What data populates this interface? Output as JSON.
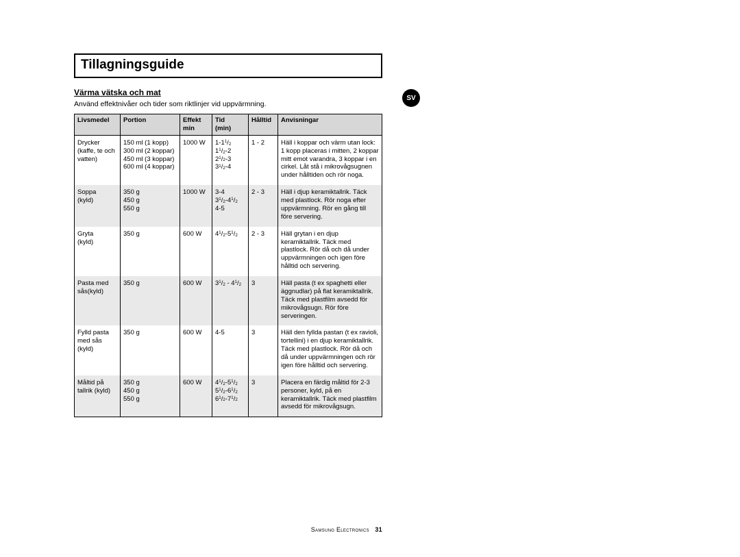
{
  "page": {
    "title": "Tillagningsguide",
    "subhead": "Värma vätska och mat",
    "intro": "Använd effektnivåer och tider som riktlinjer vid uppvärmning.",
    "lang_badge": "SV",
    "footer_brand": "Samsung Electronics",
    "footer_page": "31"
  },
  "table": {
    "columns": {
      "livsmedel": "Livsmedel",
      "portion": "Portion",
      "effekt": "Effekt",
      "effekt_sub": "min",
      "tid": "Tid",
      "tid_sub": "(min)",
      "halltid": "Hålltid",
      "anvisningar": "Anvisningar"
    },
    "rows": [
      {
        "alt": false,
        "livsmedel": "Drycker\n(kaffe, te och vatten)",
        "portion": "150 ml (1 kopp)\n300 ml (2 koppar)\n450 ml (3 koppar)\n600 ml (4 koppar)",
        "effekt": "1000 W",
        "tid_html": "1-1<sup>1</sup>/<sub>2</sub><br>1<sup>1</sup>/<sub>2</sub>-2<br>2<sup>1</sup>/<sub>2</sub>-3<br>3<sup>1</sup>/<sub>2</sub>-4",
        "halltid": "1 - 2",
        "anv": "Häll i koppar och värm utan lock: 1 kopp placeras i mitten, 2 koppar mitt emot varandra, 3 koppar i en cirkel. Låt stå i mikrovågsugnen under hålltiden och rör noga."
      },
      {
        "alt": true,
        "livsmedel": "Soppa\n(kyld)",
        "portion": "350 g\n450 g\n550 g",
        "effekt": "1000 W",
        "tid_html": "3-4<br>3<sup>1</sup>/<sub>2</sub>-4<sup>1</sup>/<sub>2</sub><br>4-5",
        "halltid": "2 - 3",
        "anv": "Häll i djup keramiktallrik. Täck med plastlock. Rör noga efter uppvärmning. Rör en gång till före servering."
      },
      {
        "alt": false,
        "livsmedel": "Gryta\n(kyld)",
        "portion": "350 g",
        "effekt": "600 W",
        "tid_html": "4<sup>1</sup>/<sub>2</sub>-5<sup>1</sup>/<sub>2</sub>",
        "halltid": "2 - 3",
        "anv": "Häll grytan i en djup keramiktallrik. Täck med plastlock. Rör då och då under uppvärmningen och igen före hålltid och servering."
      },
      {
        "alt": true,
        "livsmedel": "Pasta med sås(kyld)",
        "portion": "350 g",
        "effekt": "600 W",
        "tid_html": "3<sup>1</sup>/<sub>2</sub> - 4<sup>1</sup>/<sub>2</sub>",
        "halltid": "3",
        "anv": "Häll pasta (t ex spaghetti eller äggnudlar) på flat keramiktallrik. Täck med plastfilm avsedd för mikrovågsugn. Rör före serveringen."
      },
      {
        "alt": false,
        "livsmedel": "Fylld pasta med sås (kyld)",
        "portion": "350 g",
        "effekt": "600 W",
        "tid_html": "4-5",
        "halltid": "3",
        "anv": "Häll den fyllda pastan (t ex ravioli, tortellini) i en djup keramiktallrik. Täck med plastlock. Rör då och då under uppvärmningen och rör igen före hålltid och servering."
      },
      {
        "alt": true,
        "last": true,
        "livsmedel": "Måltid på tallrik (kyld)",
        "portion": "350 g\n450 g\n550 g",
        "effekt": "600 W",
        "tid_html": "4<sup>1</sup>/<sub>2</sub>-5<sup>1</sup>/<sub>2</sub><br>5<sup>1</sup>/<sub>2</sub>-6<sup>1</sup>/<sub>2</sub><br>6<sup>1</sup>/<sub>2</sub>-7<sup>1</sup>/<sub>2</sub>",
        "halltid": "3",
        "anv": "Placera en färdig måltid för 2-3 personer, kyld, på en keramiktallrik. Täck med plastfilm avsedd för mikrovågsugn."
      }
    ]
  }
}
